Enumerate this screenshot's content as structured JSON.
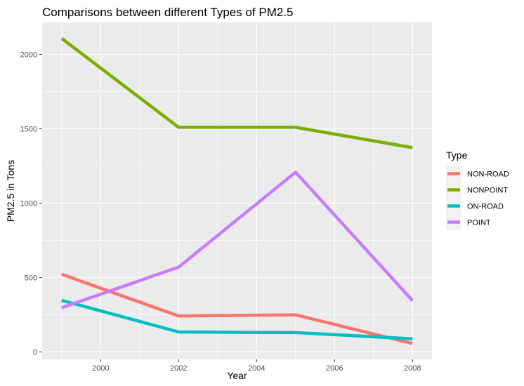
{
  "chart_data": {
    "type": "line",
    "title": "Comparisons between different Types of PM2.5",
    "xlabel": "Year",
    "ylabel": "PM2.5 in Tons",
    "x": [
      1999,
      2002,
      2005,
      2008
    ],
    "xlim": [
      1998.5,
      2008.5
    ],
    "ylim": [
      -50,
      2215
    ],
    "x_ticks": [
      2000,
      2002,
      2004,
      2006,
      2008
    ],
    "x_minor": [
      1999,
      2001,
      2003,
      2005,
      2007
    ],
    "y_ticks": [
      0,
      500,
      1000,
      1500,
      2000
    ],
    "y_minor": [
      250,
      750,
      1250,
      1750
    ],
    "grid": true,
    "legend": {
      "title": "Type",
      "placement": "right"
    },
    "series": [
      {
        "name": "NON-ROAD",
        "color": "#F8766D",
        "values": [
          522,
          241,
          249,
          56
        ]
      },
      {
        "name": "NONPOINT",
        "color": "#7CAE00",
        "values": [
          2108,
          1510,
          1510,
          1373
        ]
      },
      {
        "name": "ON-ROAD",
        "color": "#00BFC4",
        "values": [
          347,
          134,
          130,
          88
        ]
      },
      {
        "name": "POINT",
        "color": "#C77CFF",
        "values": [
          297,
          570,
          1208,
          345
        ]
      }
    ]
  }
}
